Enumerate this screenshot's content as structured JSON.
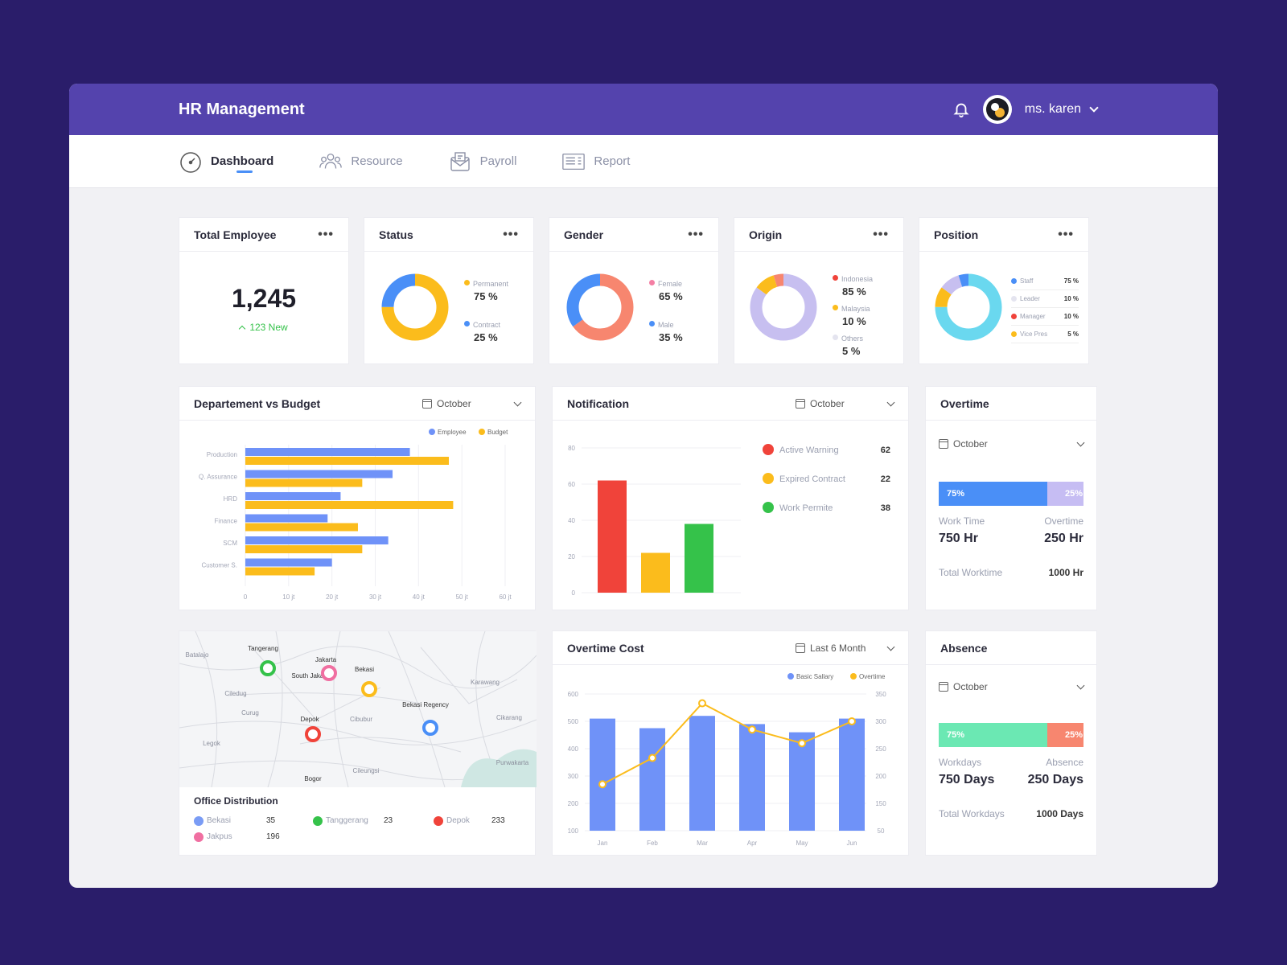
{
  "header": {
    "title": "HR Management",
    "user_name": "ms. karen"
  },
  "nav": [
    {
      "label": "Dashboard",
      "icon": "dashboard-icon",
      "active": true
    },
    {
      "label": "Resource",
      "icon": "people-icon",
      "active": false
    },
    {
      "label": "Payroll",
      "icon": "payroll-icon",
      "active": false
    },
    {
      "label": "Report",
      "icon": "report-icon",
      "active": false
    }
  ],
  "total_employee": {
    "title": "Total Employee",
    "value": "1,245",
    "new": "123 New"
  },
  "status": {
    "title": "Status",
    "items": [
      {
        "label": "Permanent",
        "value": "75 %",
        "pct": 75,
        "color": "#fbbc1c"
      },
      {
        "label": "Contract",
        "value": "25 %",
        "pct": 25,
        "color": "#4a8ff7"
      }
    ]
  },
  "gender": {
    "title": "Gender",
    "items": [
      {
        "label": "Female",
        "value": "65 %",
        "pct": 65,
        "color": "#f7866f"
      },
      {
        "label": "Male",
        "value": "35 %",
        "pct": 35,
        "color": "#4a8ff7"
      }
    ]
  },
  "origin": {
    "title": "Origin",
    "items": [
      {
        "label": "Indonesia",
        "value": "85 %",
        "pct": 85,
        "color": "#c7bff0"
      },
      {
        "label": "Malaysia",
        "value": "10 %",
        "pct": 10,
        "color": "#fbbc1c"
      },
      {
        "label": "Others",
        "value": "5 %",
        "pct": 5,
        "color": "#f7866f"
      }
    ]
  },
  "position": {
    "title": "Position",
    "items": [
      {
        "label": "Staff",
        "value": "75 %",
        "pct": 75,
        "color": "#6ad8ef"
      },
      {
        "label": "Leader",
        "value": "10 %",
        "pct": 10,
        "color": "#fbbc1c"
      },
      {
        "label": "Manager",
        "value": "10 %",
        "pct": 10,
        "color": "#c7bff0"
      },
      {
        "label": "Vice Pres",
        "value": "5 %",
        "pct": 5,
        "color": "#4a8ff7"
      }
    ]
  },
  "dept_budget": {
    "title": "Departement vs Budget",
    "month": "October"
  },
  "notification": {
    "title": "Notification",
    "month": "October"
  },
  "overtime": {
    "title": "Overtime",
    "month": "October",
    "work_pct_label": "75%",
    "ot_pct_label": "25%",
    "work_pct": 75,
    "work_label": "Work Time",
    "work_value": "750 Hr",
    "ot_label": "Overtime",
    "ot_value": "250 Hr",
    "total_label": "Total Worktime",
    "total_value": "1000 Hr"
  },
  "absence": {
    "title": "Absence",
    "month": "October",
    "work_pct_label": "75%",
    "abs_pct_label": "25%",
    "work_pct": 75,
    "work_label": "Workdays",
    "work_value": "750 Days",
    "abs_label": "Absence",
    "abs_value": "250 Days",
    "total_label": "Total Workdays",
    "total_value": "1000 Days"
  },
  "overtime_cost": {
    "title": "Overtime Cost",
    "period": "Last 6 Month"
  },
  "map": {
    "places": [
      "Tangerang",
      "Jakarta",
      "South Jakarta",
      "Bekasi",
      "Bekasi Regency",
      "Depok",
      "Bogor",
      "Batalajo",
      "Curug",
      "Ciledug",
      "Cibubur",
      "Cikarang",
      "Purwakarta",
      "Karawang",
      "Legok",
      "Cileungsi"
    ],
    "markers": [
      {
        "name": "Tangerang",
        "color": "#35c24a"
      },
      {
        "name": "Jakarta",
        "color": "#f06fa1"
      },
      {
        "name": "Bekasi",
        "color": "#fbbc1c"
      },
      {
        "name": "Depok",
        "color": "#f0433a"
      },
      {
        "name": "Bekasi Regency",
        "color": "#4a8ff7"
      }
    ]
  },
  "office": {
    "title": "Office Distribution",
    "items": [
      {
        "label": "Bekasi",
        "value": "35",
        "color": "#7a9cf5"
      },
      {
        "label": "Tanggerang",
        "value": "23",
        "color": "#35c24a"
      },
      {
        "label": "Depok",
        "value": "233",
        "color": "#f0433a"
      },
      {
        "label": "Jakpus",
        "value": "196",
        "color": "#f06fa1"
      }
    ]
  },
  "chart_data": [
    {
      "type": "bar",
      "orientation": "horizontal",
      "categories": [
        "Production",
        "Q. Assurance",
        "HRD",
        "Finance",
        "SCM",
        "Customer S."
      ],
      "series": [
        {
          "name": "Employee",
          "values": [
            38,
            34,
            22,
            19,
            33,
            20
          ],
          "color": "#6f92f8"
        },
        {
          "name": "Budget",
          "values": [
            47,
            27,
            48,
            26,
            27,
            16
          ],
          "color": "#fbbc1c"
        }
      ],
      "xticks": [
        "0",
        "10 jt",
        "20 jt",
        "30 jt",
        "40 jt",
        "50 jt",
        "60 jt"
      ],
      "xlim": [
        0,
        60
      ],
      "legend": "top-right"
    },
    {
      "type": "bar",
      "categories": [
        "Active Warning",
        "Expired Contract",
        "Work Permite"
      ],
      "values": [
        62,
        22,
        38
      ],
      "labels": [
        "62",
        "22",
        "38"
      ],
      "colors": [
        "#f0433a",
        "#fbbc1c",
        "#35c24a"
      ],
      "yticks": [
        "80",
        "60",
        "40",
        "20",
        "0"
      ],
      "ylim": [
        0,
        80
      ]
    },
    {
      "type": "bar",
      "categories": [
        "Jan",
        "Feb",
        "Mar",
        "Apr",
        "May",
        "Jun"
      ],
      "series": [
        {
          "name": "Basic Sallary",
          "values": [
            510,
            475,
            520,
            490,
            460,
            510
          ],
          "axis": "left",
          "color": "#6f92f8"
        },
        {
          "name": "Overtime",
          "values": [
            185,
            233,
            333,
            285,
            260,
            300
          ],
          "axis": "right",
          "type": "line",
          "color": "#fbbc1c"
        }
      ],
      "yticks_left": [
        "600",
        "500",
        "400",
        "300",
        "200",
        "100"
      ],
      "ylim_left": [
        100,
        600
      ],
      "yticks_right": [
        "350",
        "300",
        "250",
        "200",
        "150",
        "50"
      ],
      "ylim_right": [
        100,
        350
      ],
      "legend": "top-right"
    }
  ]
}
